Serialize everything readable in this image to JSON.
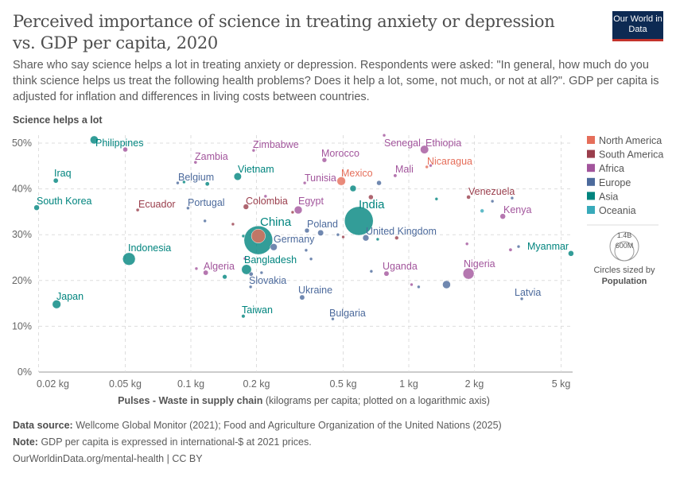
{
  "title": "Perceived importance of science in treating anxiety or depression vs. GDP per capita, 2020",
  "subtitle": "Share who say science helps a lot in treating anxiety or depression. Respondents were asked: \"In general, how much do you think science helps us treat the following health problems? Does it help a lot, some, not much, or not at all?\". GDP per capita is adjusted for inflation and differences in living costs between countries.",
  "logo": "Our World in Data",
  "footer": {
    "source_label": "Data source:",
    "source": "Wellcome Global Monitor (2021); Food and Agriculture Organization of the United Nations (2025)",
    "note_label": "Note:",
    "note": "GDP per capita is expressed in international-$ at 2021 prices.",
    "url": "OurWorldinData.org/mental-health | CC BY"
  },
  "chart_data": {
    "type": "scatter",
    "ylabel": "Science helps a lot",
    "xlabel_bold": "Pulses - Waste in supply chain",
    "xlabel_rest": " (kilograms per capita; plotted on a logarithmic axis)",
    "x_scale": "log",
    "xlim": [
      0.019,
      5.6
    ],
    "ylim": [
      0,
      52
    ],
    "grid": true,
    "x_ticks": [
      {
        "v": 0.02,
        "label": "0.02 kg"
      },
      {
        "v": 0.05,
        "label": "0.05 kg"
      },
      {
        "v": 0.1,
        "label": "0.1 kg"
      },
      {
        "v": 0.2,
        "label": "0.2 kg"
      },
      {
        "v": 0.5,
        "label": "0.5 kg"
      },
      {
        "v": 1,
        "label": "1 kg"
      },
      {
        "v": 2,
        "label": "2 kg"
      },
      {
        "v": 5,
        "label": "5 kg"
      }
    ],
    "y_ticks": [
      {
        "v": 0,
        "label": "0%"
      },
      {
        "v": 10,
        "label": "10%"
      },
      {
        "v": 20,
        "label": "20%"
      },
      {
        "v": 30,
        "label": "30%"
      },
      {
        "v": 40,
        "label": "40%"
      },
      {
        "v": 50,
        "label": "50%"
      }
    ],
    "legend": {
      "placement": "right",
      "entries": [
        {
          "name": "North America",
          "color": "#e56e5a"
        },
        {
          "name": "South America",
          "color": "#9a3e4c"
        },
        {
          "name": "Africa",
          "color": "#a2559c"
        },
        {
          "name": "Europe",
          "color": "#4c6a9c"
        },
        {
          "name": "Asia",
          "color": "#00847e"
        },
        {
          "name": "Oceania",
          "color": "#38aaba"
        }
      ]
    },
    "size_legend": {
      "large": "1.4B",
      "small": "600M",
      "caption": "Circles sized by",
      "variable": "Population"
    },
    "points": [
      {
        "name": "Philippines",
        "region": "Asia",
        "x": 0.036,
        "y": 50.7,
        "pop": 113
      },
      {
        "region": "Africa",
        "x": 0.05,
        "y": 48.6,
        "pop": 40
      },
      {
        "name": "Zambia",
        "region": "Africa",
        "x": 0.105,
        "y": 45.8,
        "pop": 19
      },
      {
        "name": "Zimbabwe",
        "region": "Africa",
        "x": 0.194,
        "y": 48.4,
        "pop": 16
      },
      {
        "name": "Iraq",
        "region": "Asia",
        "x": 0.024,
        "y": 41.8,
        "pop": 42
      },
      {
        "name": "Belgium",
        "region": "Europe",
        "x": 0.087,
        "y": 41.3,
        "pop": 12
      },
      {
        "region": "Asia",
        "x": 0.093,
        "y": 41.5,
        "pop": 10
      },
      {
        "region": "Asia",
        "x": 0.119,
        "y": 41.1,
        "pop": 30
      },
      {
        "name": "Vietnam",
        "region": "Asia",
        "x": 0.164,
        "y": 42.7,
        "pop": 98
      },
      {
        "name": "Tunisia",
        "region": "Africa",
        "x": 0.333,
        "y": 41.3,
        "pop": 12
      },
      {
        "name": "South Korea",
        "region": "Asia",
        "x": 0.0196,
        "y": 35.9,
        "pop": 52
      },
      {
        "name": "Ecuador",
        "region": "South America",
        "x": 0.057,
        "y": 35.4,
        "pop": 18
      },
      {
        "name": "Portugal",
        "region": "Europe",
        "x": 0.097,
        "y": 35.8,
        "pop": 10
      },
      {
        "name": "Colombia",
        "region": "South America",
        "x": 0.179,
        "y": 36.1,
        "pop": 51
      },
      {
        "region": "Africa",
        "x": 0.22,
        "y": 38.4,
        "pop": 10
      },
      {
        "name": "Egypt",
        "region": "Africa",
        "x": 0.311,
        "y": 35.4,
        "pop": 107
      },
      {
        "region": "South America",
        "x": 0.293,
        "y": 34.9,
        "pop": 12
      },
      {
        "region": "Europe",
        "x": 0.116,
        "y": 33.0,
        "pop": 10
      },
      {
        "region": "South America",
        "x": 0.156,
        "y": 32.3,
        "pop": 10
      },
      {
        "name": "China",
        "region": "Asia",
        "x": 0.204,
        "y": 28.8,
        "pop": 1412
      },
      {
        "region": "North America",
        "x": 0.204,
        "y": 29.7,
        "pop": 333
      },
      {
        "region": "Asia",
        "x": 0.174,
        "y": 29.7,
        "pop": 8
      },
      {
        "name": "Germany",
        "region": "Europe",
        "x": 0.24,
        "y": 27.3,
        "pop": 83
      },
      {
        "name": "Poland",
        "region": "Europe",
        "x": 0.341,
        "y": 30.9,
        "pop": 38
      },
      {
        "region": "Europe",
        "x": 0.394,
        "y": 30.4,
        "pop": 60
      },
      {
        "region": "Europe",
        "x": 0.473,
        "y": 30.0,
        "pop": 10
      },
      {
        "region": "South America",
        "x": 0.5,
        "y": 29.5,
        "pop": 8
      },
      {
        "region": "Europe",
        "x": 0.338,
        "y": 26.6,
        "pop": 10
      },
      {
        "name": "Senegal",
        "region": "Africa",
        "x": 0.771,
        "y": 51.7,
        "pop": 17
      },
      {
        "name": "Ethiopia",
        "region": "Africa",
        "x": 1.18,
        "y": 48.6,
        "pop": 120
      },
      {
        "name": "Morocco",
        "region": "Africa",
        "x": 0.41,
        "y": 46.3,
        "pop": 37
      },
      {
        "name": "Nicaragua",
        "region": "North America",
        "x": 1.21,
        "y": 44.8,
        "pop": 7
      },
      {
        "region": "Africa",
        "x": 1.26,
        "y": 45.1,
        "pop": 10
      },
      {
        "name": "Mali",
        "region": "Africa",
        "x": 0.866,
        "y": 42.9,
        "pop": 21
      },
      {
        "name": "Mexico",
        "region": "North America",
        "x": 0.49,
        "y": 41.7,
        "pop": 127
      },
      {
        "region": "Asia",
        "x": 0.555,
        "y": 40.1,
        "pop": 70
      },
      {
        "region": "Europe",
        "x": 0.73,
        "y": 41.3,
        "pop": 40
      },
      {
        "region": "South America",
        "x": 0.67,
        "y": 38.2,
        "pop": 40
      },
      {
        "name": "Venezuela",
        "region": "South America",
        "x": 1.88,
        "y": 38.2,
        "pop": 28
      },
      {
        "region": "Asia",
        "x": 1.34,
        "y": 37.8,
        "pop": 8
      },
      {
        "region": "Europe",
        "x": 2.42,
        "y": 37.3,
        "pop": 10
      },
      {
        "region": "Europe",
        "x": 2.98,
        "y": 38.0,
        "pop": 10
      },
      {
        "region": "Oceania",
        "x": 2.17,
        "y": 35.2,
        "pop": 26
      },
      {
        "name": "Kenya",
        "region": "Africa",
        "x": 2.7,
        "y": 34.0,
        "pop": 53
      },
      {
        "name": "India",
        "region": "Asia",
        "x": 0.59,
        "y": 33.0,
        "pop": 1417
      },
      {
        "name": "United Kingdom",
        "region": "Europe",
        "x": 0.635,
        "y": 29.3,
        "pop": 67
      },
      {
        "region": "Asia",
        "x": 0.72,
        "y": 29.0,
        "pop": 15
      },
      {
        "region": "South America",
        "x": 0.88,
        "y": 29.3,
        "pop": 25
      },
      {
        "region": "Africa",
        "x": 1.85,
        "y": 28.0,
        "pop": 10
      },
      {
        "region": "Africa",
        "x": 2.93,
        "y": 26.7,
        "pop": 20
      },
      {
        "region": "Europe",
        "x": 3.19,
        "y": 27.4,
        "pop": 10
      },
      {
        "name": "Myanmar",
        "region": "Asia",
        "x": 5.55,
        "y": 25.9,
        "pop": 54
      },
      {
        "name": "Indonesia",
        "region": "Asia",
        "x": 0.052,
        "y": 24.7,
        "pop": 275
      },
      {
        "region": "Europe",
        "x": 0.356,
        "y": 24.7,
        "pop": 10
      },
      {
        "region": "Africa",
        "x": 0.177,
        "y": 24.8,
        "pop": 6
      },
      {
        "name": "Bangladesh",
        "region": "Asia",
        "x": 0.18,
        "y": 22.4,
        "pop": 169
      },
      {
        "region": "Europe",
        "x": 0.189,
        "y": 21.4,
        "pop": 30
      },
      {
        "region": "Europe",
        "x": 0.211,
        "y": 21.7,
        "pop": 10
      },
      {
        "name": "Algeria",
        "region": "Africa",
        "x": 0.117,
        "y": 21.7,
        "pop": 44
      },
      {
        "region": "Africa",
        "x": 0.106,
        "y": 22.6,
        "pop": 15
      },
      {
        "region": "Asia",
        "x": 0.143,
        "y": 20.8,
        "pop": 35
      },
      {
        "name": "Slovakia",
        "region": "Europe",
        "x": 0.188,
        "y": 18.6,
        "pop": 5
      },
      {
        "name": "Uganda",
        "region": "Africa",
        "x": 0.79,
        "y": 21.5,
        "pop": 45
      },
      {
        "region": "Europe",
        "x": 0.673,
        "y": 22.0,
        "pop": 10
      },
      {
        "name": "Nigeria",
        "region": "Africa",
        "x": 1.88,
        "y": 21.5,
        "pop": 213
      },
      {
        "region": "Europe",
        "x": 1.49,
        "y": 19.1,
        "pop": 110
      },
      {
        "region": "Africa",
        "x": 1.03,
        "y": 19.1,
        "pop": 10
      },
      {
        "region": "Europe",
        "x": 1.11,
        "y": 18.6,
        "pop": 10
      },
      {
        "name": "Japan",
        "region": "Asia",
        "x": 0.0242,
        "y": 14.8,
        "pop": 125
      },
      {
        "name": "Ukraine",
        "region": "Europe",
        "x": 0.324,
        "y": 16.3,
        "pop": 44
      },
      {
        "name": "Taiwan",
        "region": "Asia",
        "x": 0.174,
        "y": 12.2,
        "pop": 23
      },
      {
        "name": "Bulgaria",
        "region": "Europe",
        "x": 0.448,
        "y": 11.6,
        "pop": 7
      },
      {
        "name": "Latvia",
        "region": "Europe",
        "x": 3.3,
        "y": 16.0,
        "pop": 2
      }
    ]
  }
}
